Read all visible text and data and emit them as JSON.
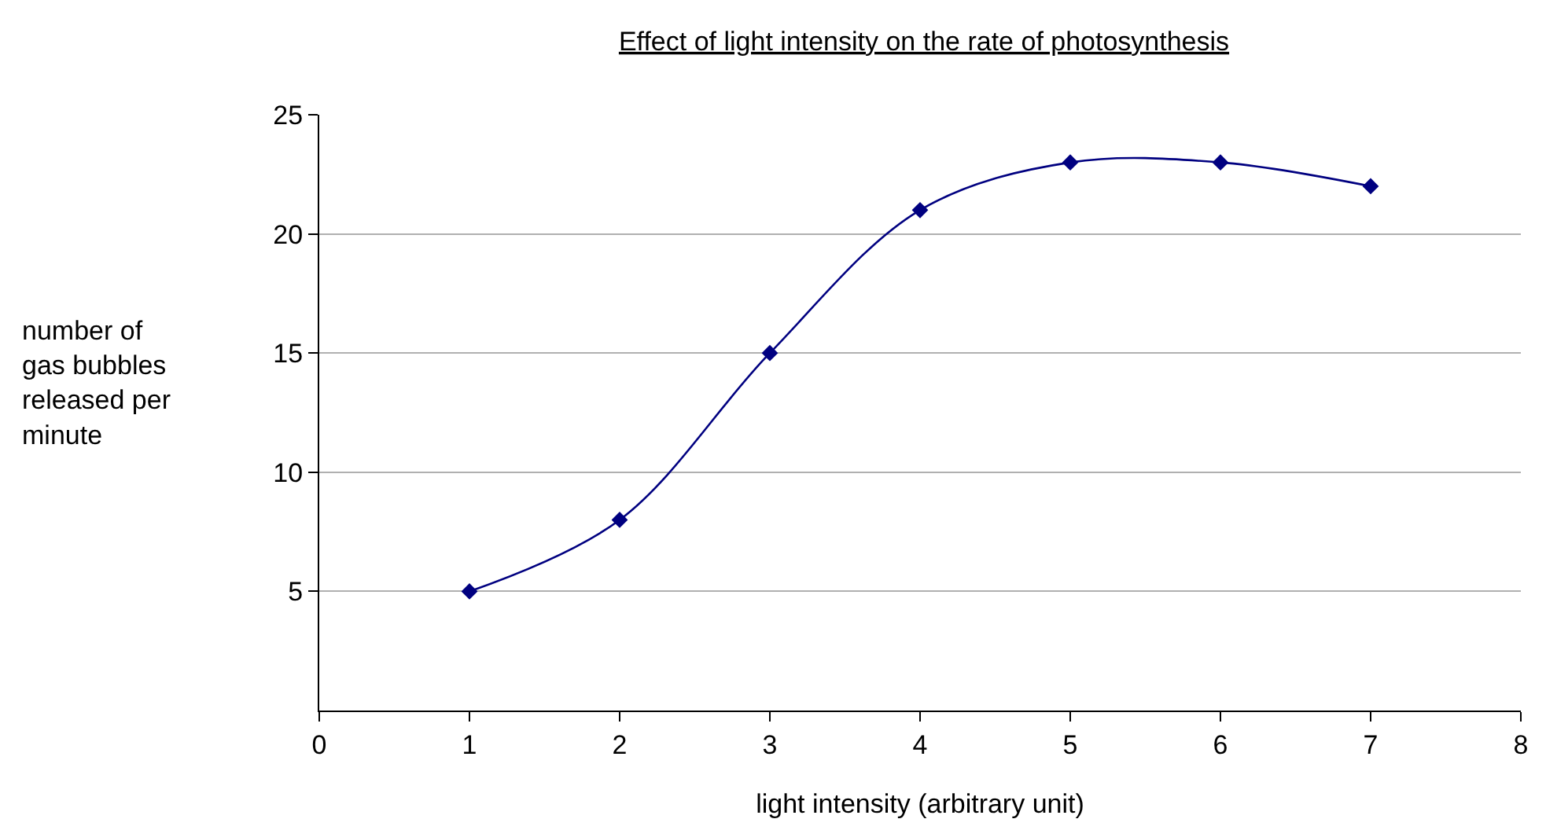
{
  "chart_data": {
    "type": "line",
    "title": "Effect of light intensity on the rate of photosynthesis",
    "xlabel": "light intensity (arbitrary unit)",
    "ylabel": "number of\ngas bubbles\nreleased per\nminute",
    "x": [
      1,
      2,
      3,
      4,
      5,
      6,
      7
    ],
    "series": [
      {
        "color": "#000080",
        "values": [
          5,
          8,
          15,
          21,
          23,
          23,
          22
        ]
      }
    ],
    "xlim": [
      0,
      8
    ],
    "xticks": [
      0,
      1,
      2,
      3,
      4,
      5,
      6,
      7,
      8
    ],
    "ylim": [
      0,
      25
    ],
    "yticks": [
      5,
      10,
      15,
      20,
      25
    ],
    "grid": "y",
    "marker": "diamond",
    "line_style": "solid"
  }
}
